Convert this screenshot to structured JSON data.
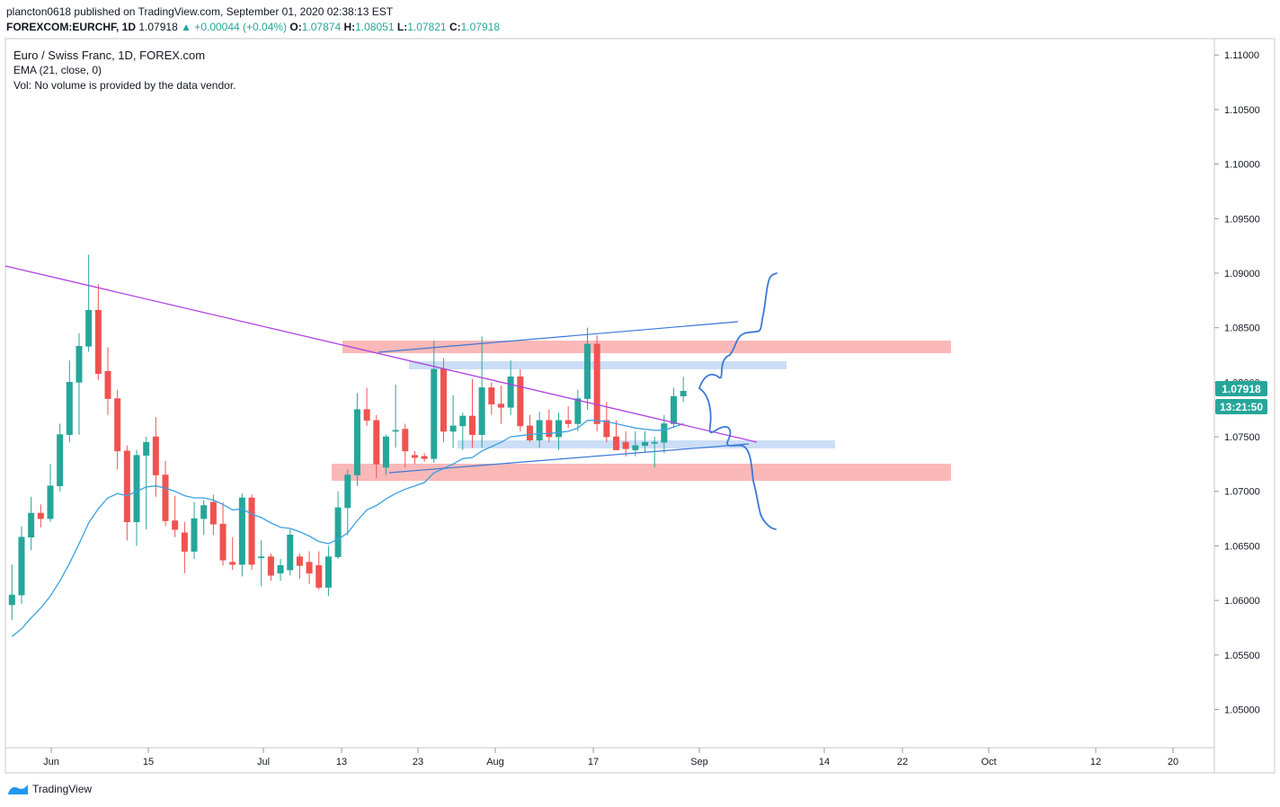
{
  "header": {
    "published_line": "plancton0618 published on TradingView.com, September 01, 2020 02:38:13 EST",
    "symbol": "FOREXCOM:EURCHF, 1D",
    "last": "1.07918",
    "change": "▲ +0.00044 (+0.04%)",
    "o_label": "O:",
    "o": "1.07874",
    "h_label": "H:",
    "h": "1.08051",
    "l_label": "L:",
    "l": "1.07821",
    "c_label": "C:",
    "c": "1.07918"
  },
  "legend": {
    "title": "Euro / Swiss Franc, 1D, FOREX.com",
    "ema": "EMA (21, close, 0)",
    "volume": "Vol: No volume is provided by the data vendor."
  },
  "price_tag": {
    "price": "1.07918",
    "countdown": "13:21:50",
    "color": "#26a69a"
  },
  "footer": {
    "brand": "TradingView"
  },
  "colors": {
    "up": "#26a69a",
    "down": "#ef5350",
    "ema": "#3aa0e0",
    "trend": "#b040e0",
    "red_zone": "#f8a0a0",
    "blue_zone": "#a8c8f0",
    "drawing": "#3a78d8"
  },
  "chart_data": {
    "type": "candlestick",
    "symbol": "FOREXCOM:EURCHF",
    "interval": "1D",
    "y_ticks": [
      "1.11000",
      "1.10500",
      "1.10000",
      "1.09500",
      "1.09000",
      "1.08500",
      "1.08000",
      "1.07500",
      "1.07000",
      "1.06500",
      "1.06000",
      "1.05500",
      "1.05000"
    ],
    "x_ticks": [
      "Jun",
      "15",
      "Jul",
      "13",
      "23",
      "Aug",
      "17",
      "Sep",
      "14",
      "22",
      "Oct",
      "12",
      "20"
    ],
    "ylim": [
      1.0465,
      1.1115
    ],
    "candles": [
      {
        "o": 1.0596,
        "h": 1.0633,
        "l": 1.0582,
        "c": 1.0605
      },
      {
        "o": 1.0605,
        "h": 1.0668,
        "l": 1.0597,
        "c": 1.0658
      },
      {
        "o": 1.0658,
        "h": 1.0695,
        "l": 1.0646,
        "c": 1.068
      },
      {
        "o": 1.068,
        "h": 1.0688,
        "l": 1.0667,
        "c": 1.0675
      },
      {
        "o": 1.0675,
        "h": 1.0725,
        "l": 1.0672,
        "c": 1.0705
      },
      {
        "o": 1.0705,
        "h": 1.0762,
        "l": 1.07,
        "c": 1.0752
      },
      {
        "o": 1.0752,
        "h": 1.082,
        "l": 1.0745,
        "c": 1.08
      },
      {
        "o": 1.08,
        "h": 1.0845,
        "l": 1.0752,
        "c": 1.0833
      },
      {
        "o": 1.0833,
        "h": 1.0917,
        "l": 1.0828,
        "c": 1.0866
      },
      {
        "o": 1.0866,
        "h": 1.089,
        "l": 1.0802,
        "c": 1.0808
      },
      {
        "o": 1.081,
        "h": 1.0832,
        "l": 1.077,
        "c": 1.0785
      },
      {
        "o": 1.0785,
        "h": 1.0793,
        "l": 1.072,
        "c": 1.0737
      },
      {
        "o": 1.0737,
        "h": 1.0742,
        "l": 1.0655,
        "c": 1.0672
      },
      {
        "o": 1.0672,
        "h": 1.0738,
        "l": 1.065,
        "c": 1.0733
      },
      {
        "o": 1.0733,
        "h": 1.075,
        "l": 1.0665,
        "c": 1.0745
      },
      {
        "o": 1.075,
        "h": 1.0768,
        "l": 1.0695,
        "c": 1.0715
      },
      {
        "o": 1.0715,
        "h": 1.0728,
        "l": 1.0668,
        "c": 1.0673
      },
      {
        "o": 1.0673,
        "h": 1.0696,
        "l": 1.0658,
        "c": 1.0665
      },
      {
        "o": 1.0662,
        "h": 1.0672,
        "l": 1.0625,
        "c": 1.0645
      },
      {
        "o": 1.0645,
        "h": 1.069,
        "l": 1.0638,
        "c": 1.0675
      },
      {
        "o": 1.0675,
        "h": 1.0692,
        "l": 1.066,
        "c": 1.0687
      },
      {
        "o": 1.069,
        "h": 1.0697,
        "l": 1.066,
        "c": 1.067
      },
      {
        "o": 1.067,
        "h": 1.069,
        "l": 1.0632,
        "c": 1.0637
      },
      {
        "o": 1.0635,
        "h": 1.0658,
        "l": 1.0628,
        "c": 1.0633
      },
      {
        "o": 1.0633,
        "h": 1.0698,
        "l": 1.0622,
        "c": 1.0694
      },
      {
        "o": 1.0694,
        "h": 1.0697,
        "l": 1.0628,
        "c": 1.0633
      },
      {
        "o": 1.064,
        "h": 1.0655,
        "l": 1.0613,
        "c": 1.064
      },
      {
        "o": 1.064,
        "h": 1.0643,
        "l": 1.0618,
        "c": 1.0623
      },
      {
        "o": 1.0625,
        "h": 1.0638,
        "l": 1.0618,
        "c": 1.0632
      },
      {
        "o": 1.0628,
        "h": 1.0665,
        "l": 1.0623,
        "c": 1.066
      },
      {
        "o": 1.064,
        "h": 1.0643,
        "l": 1.062,
        "c": 1.0632
      },
      {
        "o": 1.0635,
        "h": 1.0645,
        "l": 1.0615,
        "c": 1.0625
      },
      {
        "o": 1.0632,
        "h": 1.0645,
        "l": 1.061,
        "c": 1.0612
      },
      {
        "o": 1.0612,
        "h": 1.065,
        "l": 1.0604,
        "c": 1.064
      },
      {
        "o": 1.064,
        "h": 1.07,
        "l": 1.0638,
        "c": 1.0685
      },
      {
        "o": 1.0685,
        "h": 1.072,
        "l": 1.066,
        "c": 1.0715
      },
      {
        "o": 1.0715,
        "h": 1.079,
        "l": 1.0705,
        "c": 1.0775
      },
      {
        "o": 1.0775,
        "h": 1.0795,
        "l": 1.076,
        "c": 1.0765
      },
      {
        "o": 1.0765,
        "h": 1.077,
        "l": 1.0712,
        "c": 1.0725
      },
      {
        "o": 1.0722,
        "h": 1.0752,
        "l": 1.0715,
        "c": 1.075
      },
      {
        "o": 1.0755,
        "h": 1.0798,
        "l": 1.074,
        "c": 1.0756
      },
      {
        "o": 1.0757,
        "h": 1.0762,
        "l": 1.0722,
        "c": 1.0737
      },
      {
        "o": 1.0733,
        "h": 1.0737,
        "l": 1.0725,
        "c": 1.0731
      },
      {
        "o": 1.0732,
        "h": 1.0735,
        "l": 1.0727,
        "c": 1.073
      },
      {
        "o": 1.073,
        "h": 1.0838,
        "l": 1.0726,
        "c": 1.0812
      },
      {
        "o": 1.0812,
        "h": 1.0822,
        "l": 1.0745,
        "c": 1.0755
      },
      {
        "o": 1.0755,
        "h": 1.0788,
        "l": 1.074,
        "c": 1.076
      },
      {
        "o": 1.076,
        "h": 1.0772,
        "l": 1.0738,
        "c": 1.0769
      },
      {
        "o": 1.0769,
        "h": 1.0803,
        "l": 1.074,
        "c": 1.0752
      },
      {
        "o": 1.0752,
        "h": 1.0842,
        "l": 1.074,
        "c": 1.0795
      },
      {
        "o": 1.0795,
        "h": 1.08,
        "l": 1.077,
        "c": 1.078
      },
      {
        "o": 1.078,
        "h": 1.0797,
        "l": 1.0762,
        "c": 1.0777
      },
      {
        "o": 1.0777,
        "h": 1.082,
        "l": 1.077,
        "c": 1.0805
      },
      {
        "o": 1.0805,
        "h": 1.0812,
        "l": 1.0755,
        "c": 1.076
      },
      {
        "o": 1.076,
        "h": 1.077,
        "l": 1.0745,
        "c": 1.0747
      },
      {
        "o": 1.0747,
        "h": 1.0773,
        "l": 1.074,
        "c": 1.0765
      },
      {
        "o": 1.0765,
        "h": 1.0775,
        "l": 1.0745,
        "c": 1.075
      },
      {
        "o": 1.075,
        "h": 1.0772,
        "l": 1.0738,
        "c": 1.0765
      },
      {
        "o": 1.0765,
        "h": 1.0778,
        "l": 1.0758,
        "c": 1.0762
      },
      {
        "o": 1.0762,
        "h": 1.0793,
        "l": 1.0755,
        "c": 1.0785
      },
      {
        "o": 1.0785,
        "h": 1.085,
        "l": 1.0775,
        "c": 1.0835
      },
      {
        "o": 1.0835,
        "h": 1.0843,
        "l": 1.0755,
        "c": 1.0762
      },
      {
        "o": 1.0765,
        "h": 1.0782,
        "l": 1.0745,
        "c": 1.075
      },
      {
        "o": 1.075,
        "h": 1.0765,
        "l": 1.0738,
        "c": 1.0738
      },
      {
        "o": 1.0745,
        "h": 1.0755,
        "l": 1.0732,
        "c": 1.0739
      },
      {
        "o": 1.0738,
        "h": 1.0755,
        "l": 1.0732,
        "c": 1.0742
      },
      {
        "o": 1.0742,
        "h": 1.0755,
        "l": 1.0736,
        "c": 1.0745
      },
      {
        "o": 1.0745,
        "h": 1.075,
        "l": 1.0722,
        "c": 1.0745
      },
      {
        "o": 1.0745,
        "h": 1.077,
        "l": 1.0735,
        "c": 1.0762
      },
      {
        "o": 1.0762,
        "h": 1.0795,
        "l": 1.0758,
        "c": 1.0787
      },
      {
        "o": 1.07874,
        "h": 1.08051,
        "l": 1.07821,
        "c": 1.07918
      }
    ],
    "ema": [
      1.0567,
      1.0574,
      1.0584,
      1.0593,
      1.0604,
      1.0618,
      1.0634,
      1.0652,
      1.0671,
      1.0684,
      1.0694,
      1.0698,
      1.0696,
      1.07,
      1.0704,
      1.0705,
      1.0703,
      1.07,
      1.0696,
      1.0694,
      1.0694,
      1.0692,
      1.0688,
      1.0683,
      1.0684,
      1.0679,
      1.0676,
      1.0671,
      1.0667,
      1.0666,
      1.0663,
      1.0659,
      1.0654,
      1.0652,
      1.0656,
      1.0662,
      1.0673,
      1.0683,
      1.0687,
      1.0693,
      1.0698,
      1.0702,
      1.0705,
      1.0708,
      1.0717,
      1.0721,
      1.0725,
      1.073,
      1.0731,
      1.0737,
      1.0741,
      1.0745,
      1.075,
      1.0751,
      1.0752,
      1.0753,
      1.0753,
      1.0754,
      1.0755,
      1.0758,
      1.0765,
      1.0765,
      1.0764,
      1.0762,
      1.076,
      1.0758,
      1.0757,
      1.0756,
      1.0756,
      1.0759,
      1.0762
    ]
  }
}
